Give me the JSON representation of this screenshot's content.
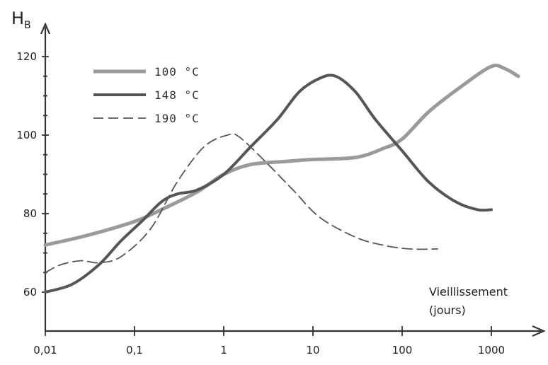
{
  "chart_data": {
    "type": "line",
    "title": "",
    "ylabel": "H",
    "ylabel_sub": "B",
    "xlabel_line1": "Vieillissement",
    "xlabel_line2": "(jours)",
    "x_scale": "log",
    "xlim": [
      0.01,
      3000
    ],
    "ylim": [
      50,
      127
    ],
    "x_ticks": [
      {
        "value": 0.01,
        "label": "0,01"
      },
      {
        "value": 0.1,
        "label": "0,1"
      },
      {
        "value": 1,
        "label": "1"
      },
      {
        "value": 10,
        "label": "10"
      },
      {
        "value": 100,
        "label": "100"
      },
      {
        "value": 1000,
        "label": "1000"
      }
    ],
    "y_ticks": [
      {
        "value": 60,
        "label": "60"
      },
      {
        "value": 80,
        "label": "80"
      },
      {
        "value": 100,
        "label": "100"
      },
      {
        "value": 120,
        "label": "120"
      }
    ],
    "legend_position": "top-left",
    "grid": false,
    "series": [
      {
        "name": "100 °C",
        "style": "solid-light",
        "color": "#9a9a9a",
        "points": [
          [
            0.01,
            72
          ],
          [
            0.03,
            74.5
          ],
          [
            0.1,
            78
          ],
          [
            0.2,
            81
          ],
          [
            0.5,
            85.5
          ],
          [
            1,
            90
          ],
          [
            2,
            92.5
          ],
          [
            5,
            93.3
          ],
          [
            10,
            93.8
          ],
          [
            30,
            94.3
          ],
          [
            60,
            96.5
          ],
          [
            100,
            99
          ],
          [
            200,
            106
          ],
          [
            500,
            113
          ],
          [
            1000,
            117.5
          ],
          [
            1400,
            117
          ],
          [
            2000,
            115
          ]
        ]
      },
      {
        "name": "148 °C",
        "style": "solid-dark",
        "color": "#555555",
        "points": [
          [
            0.01,
            60
          ],
          [
            0.02,
            62
          ],
          [
            0.04,
            67
          ],
          [
            0.07,
            73
          ],
          [
            0.12,
            78
          ],
          [
            0.2,
            83
          ],
          [
            0.3,
            85
          ],
          [
            0.5,
            86
          ],
          [
            1,
            90
          ],
          [
            2,
            97
          ],
          [
            4,
            104
          ],
          [
            7,
            111
          ],
          [
            12,
            114.5
          ],
          [
            18,
            115
          ],
          [
            30,
            111
          ],
          [
            50,
            104
          ],
          [
            100,
            96
          ],
          [
            200,
            88
          ],
          [
            400,
            83
          ],
          [
            700,
            81
          ],
          [
            1000,
            81
          ]
        ]
      },
      {
        "name": "190 °C",
        "style": "dashed",
        "color": "#555555",
        "points": [
          [
            0.01,
            65
          ],
          [
            0.015,
            67
          ],
          [
            0.025,
            68
          ],
          [
            0.04,
            67.5
          ],
          [
            0.07,
            69
          ],
          [
            0.15,
            76
          ],
          [
            0.3,
            88
          ],
          [
            0.6,
            97
          ],
          [
            1.1,
            100
          ],
          [
            1.5,
            99.5
          ],
          [
            3,
            93
          ],
          [
            6,
            86
          ],
          [
            12,
            79
          ],
          [
            30,
            74
          ],
          [
            60,
            72
          ],
          [
            120,
            71
          ],
          [
            250,
            71
          ]
        ]
      }
    ]
  }
}
